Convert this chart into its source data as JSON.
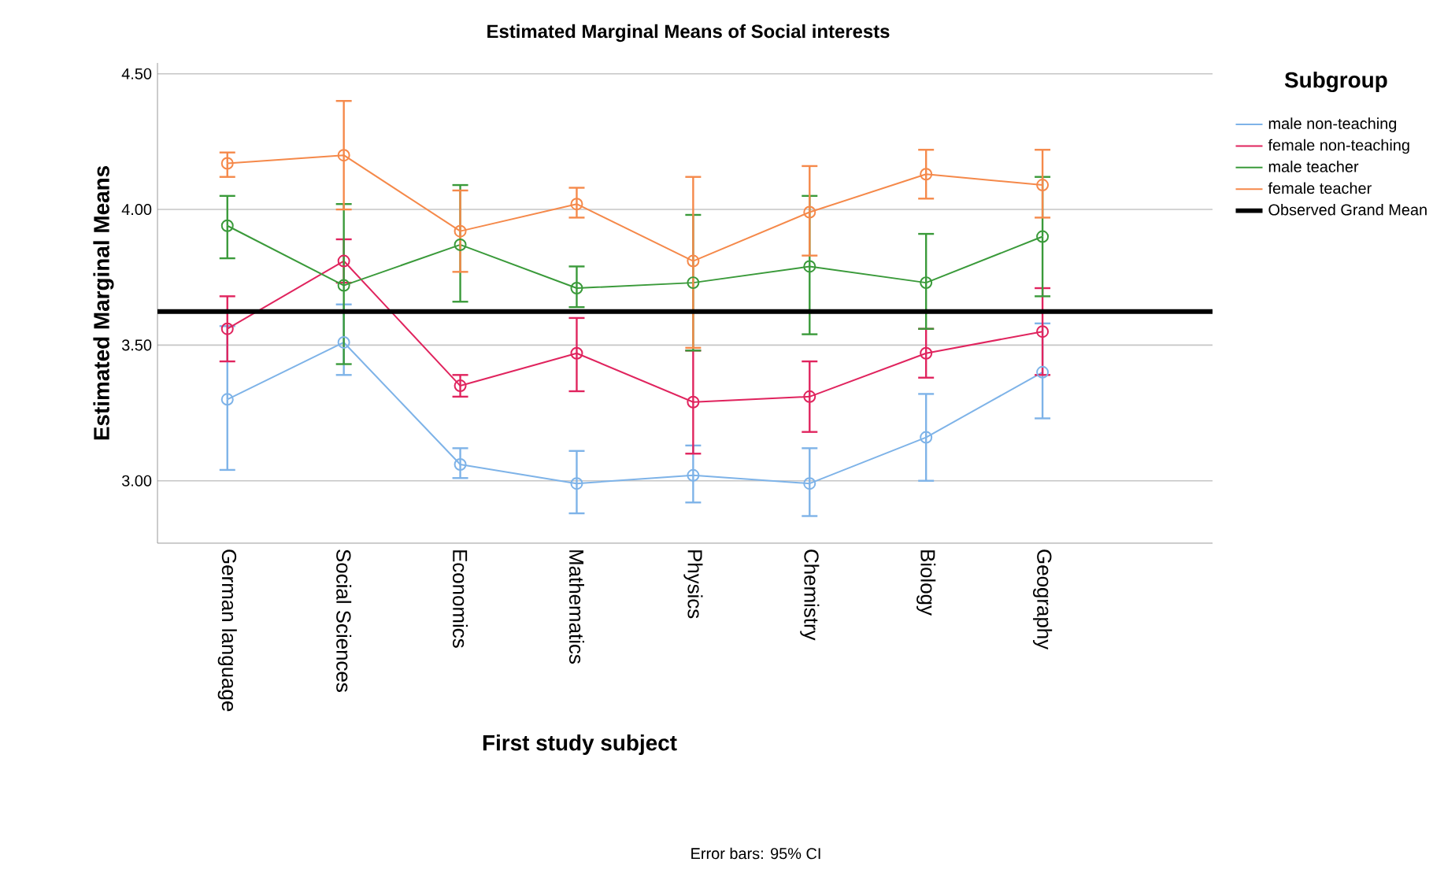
{
  "chart_data": {
    "type": "line",
    "title": "Estimated Marginal Means of Social interests",
    "xlabel": "First study subject",
    "ylabel": "Estimated Marginal Means",
    "legend_title": "Subgroup",
    "categories": [
      "German language",
      "Social Sciences",
      "Economics",
      "Mathematics",
      "Physics",
      "Chemistry",
      "Biology",
      "Geography"
    ],
    "series": [
      {
        "name": "male non-teaching",
        "color": "#7eb3e8",
        "values": [
          3.3,
          3.51,
          3.06,
          2.99,
          3.02,
          2.99,
          3.16,
          3.4
        ],
        "errors": [
          [
            3.04,
            3.57
          ],
          [
            3.39,
            3.65
          ],
          [
            3.01,
            3.12
          ],
          [
            2.88,
            3.11
          ],
          [
            2.92,
            3.13
          ],
          [
            2.87,
            3.12
          ],
          [
            3.0,
            3.32
          ],
          [
            3.23,
            3.58
          ]
        ]
      },
      {
        "name": "female non-teaching",
        "color": "#e0245e",
        "values": [
          3.56,
          3.81,
          3.35,
          3.47,
          3.29,
          3.31,
          3.47,
          3.55
        ],
        "errors": [
          [
            3.44,
            3.68
          ],
          [
            3.73,
            3.89
          ],
          [
            3.31,
            3.39
          ],
          [
            3.33,
            3.6
          ],
          [
            3.1,
            3.48
          ],
          [
            3.18,
            3.44
          ],
          [
            3.38,
            3.56
          ],
          [
            3.39,
            3.71
          ]
        ]
      },
      {
        "name": "male teacher",
        "color": "#3a9a3a",
        "values": [
          3.94,
          3.72,
          3.87,
          3.71,
          3.73,
          3.79,
          3.73,
          3.9
        ],
        "errors": [
          [
            3.82,
            4.05
          ],
          [
            3.43,
            4.02
          ],
          [
            3.66,
            4.09
          ],
          [
            3.64,
            3.79
          ],
          [
            3.48,
            3.98
          ],
          [
            3.54,
            4.05
          ],
          [
            3.56,
            3.91
          ],
          [
            3.68,
            4.12
          ]
        ]
      },
      {
        "name": "female teacher",
        "color": "#f5894a",
        "values": [
          4.17,
          4.2,
          3.92,
          4.02,
          3.81,
          3.99,
          4.13,
          4.09
        ],
        "errors": [
          [
            4.12,
            4.21
          ],
          [
            4.0,
            4.4
          ],
          [
            3.77,
            4.07
          ],
          [
            3.97,
            4.08
          ],
          [
            3.49,
            4.12
          ],
          [
            3.83,
            4.16
          ],
          [
            4.04,
            4.22
          ],
          [
            3.97,
            4.22
          ]
        ]
      }
    ],
    "ref_lines": [
      {
        "axis": "y",
        "value": 3.624,
        "label": "Observed Grand Mean",
        "color": "#000000"
      }
    ],
    "ylim": [
      2.77,
      4.54
    ],
    "yticks": [
      {
        "value": 3.0,
        "label": "3.00"
      },
      {
        "value": 3.5,
        "label": "3.50"
      },
      {
        "value": 4.0,
        "label": "4.00"
      },
      {
        "value": 4.5,
        "label": "4.50"
      }
    ],
    "grid": "y",
    "legend": "right",
    "marker": "circle",
    "line_style": "solid",
    "annotations": [
      "Error bars: 95% CI"
    ]
  }
}
